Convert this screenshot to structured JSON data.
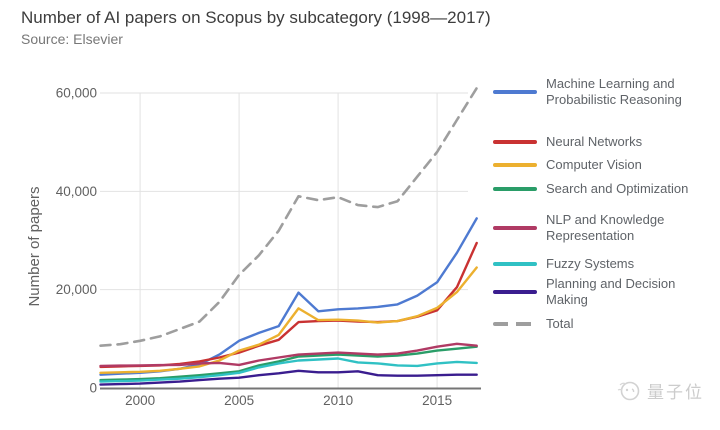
{
  "chart_data": {
    "type": "line",
    "title": "Number of AI papers on Scopus by subcategory (1998—2017)",
    "subtitle": "Source: Elsevier",
    "xlabel": "",
    "ylabel": "Number of papers",
    "xlim": [
      1998,
      2017
    ],
    "ylim": [
      0,
      60000
    ],
    "grid": true,
    "legend_position": "right",
    "x": [
      1998,
      1999,
      2000,
      2001,
      2002,
      2003,
      2004,
      2005,
      2006,
      2007,
      2008,
      2009,
      2010,
      2011,
      2012,
      2013,
      2014,
      2015,
      2016,
      2017
    ],
    "xticks": [
      2000,
      2005,
      2010,
      2015
    ],
    "yticks": [
      {
        "label": "0",
        "value": 0
      },
      {
        "label": "20,000",
        "value": 20000
      },
      {
        "label": "40,000",
        "value": 40000
      },
      {
        "label": "60,000",
        "value": 60000
      }
    ],
    "series": [
      {
        "name": "Machine Learning and Probabilistic Reasoning",
        "color": "#4e7ad1",
        "dashed": false,
        "values": [
          2700,
          2900,
          3100,
          3400,
          3900,
          4800,
          6800,
          9600,
          11200,
          12600,
          19400,
          15600,
          16000,
          16200,
          16500,
          17000,
          18800,
          21500,
          27500,
          34500
        ]
      },
      {
        "name": "Neural Networks",
        "color": "#c93232",
        "dashed": false,
        "values": [
          4300,
          4400,
          4500,
          4600,
          4900,
          5400,
          6200,
          7200,
          8600,
          9800,
          13400,
          13600,
          13700,
          13500,
          13400,
          13600,
          14500,
          15800,
          20500,
          29500
        ]
      },
      {
        "name": "Computer Vision",
        "color": "#ecb02f",
        "dashed": false,
        "values": [
          3100,
          3200,
          3300,
          3500,
          3900,
          4400,
          5600,
          7600,
          8800,
          10800,
          16200,
          13800,
          13900,
          13700,
          13300,
          13600,
          14600,
          16300,
          19500,
          24500
        ]
      },
      {
        "name": "Search and Optimization",
        "color": "#2a9d68",
        "dashed": false,
        "values": [
          1600,
          1700,
          1800,
          2000,
          2300,
          2600,
          3000,
          3400,
          4600,
          5400,
          6400,
          6600,
          6800,
          6600,
          6400,
          6600,
          7000,
          7600,
          8000,
          8400
        ]
      },
      {
        "name": "NLP and Knowledge Representation",
        "color": "#b03a64",
        "dashed": false,
        "values": [
          4500,
          4550,
          4600,
          4650,
          4700,
          5000,
          5100,
          4700,
          5600,
          6200,
          6800,
          7000,
          7200,
          7000,
          6800,
          7000,
          7600,
          8400,
          9000,
          8600
        ]
      },
      {
        "name": "Fuzzy Systems",
        "color": "#30c1c4",
        "dashed": false,
        "values": [
          1300,
          1400,
          1500,
          1700,
          1900,
          2200,
          2600,
          3100,
          4200,
          5000,
          5600,
          5800,
          6000,
          5200,
          5000,
          4600,
          4500,
          5000,
          5300,
          5100
        ]
      },
      {
        "name": "Planning and Decision Making",
        "color": "#3a1d8f",
        "dashed": false,
        "values": [
          700,
          800,
          900,
          1100,
          1300,
          1600,
          1900,
          2100,
          2600,
          3000,
          3500,
          3200,
          3200,
          3400,
          2600,
          2500,
          2500,
          2600,
          2700,
          2700
        ]
      },
      {
        "name": "Total",
        "color": "#9e9e9e",
        "dashed": true,
        "values": [
          8600,
          8900,
          9600,
          10500,
          12000,
          13500,
          17500,
          23000,
          27000,
          32000,
          39000,
          38200,
          38800,
          37200,
          36800,
          38000,
          43000,
          48000,
          54500,
          61000
        ]
      }
    ]
  },
  "watermark": {
    "text": "量子位"
  }
}
